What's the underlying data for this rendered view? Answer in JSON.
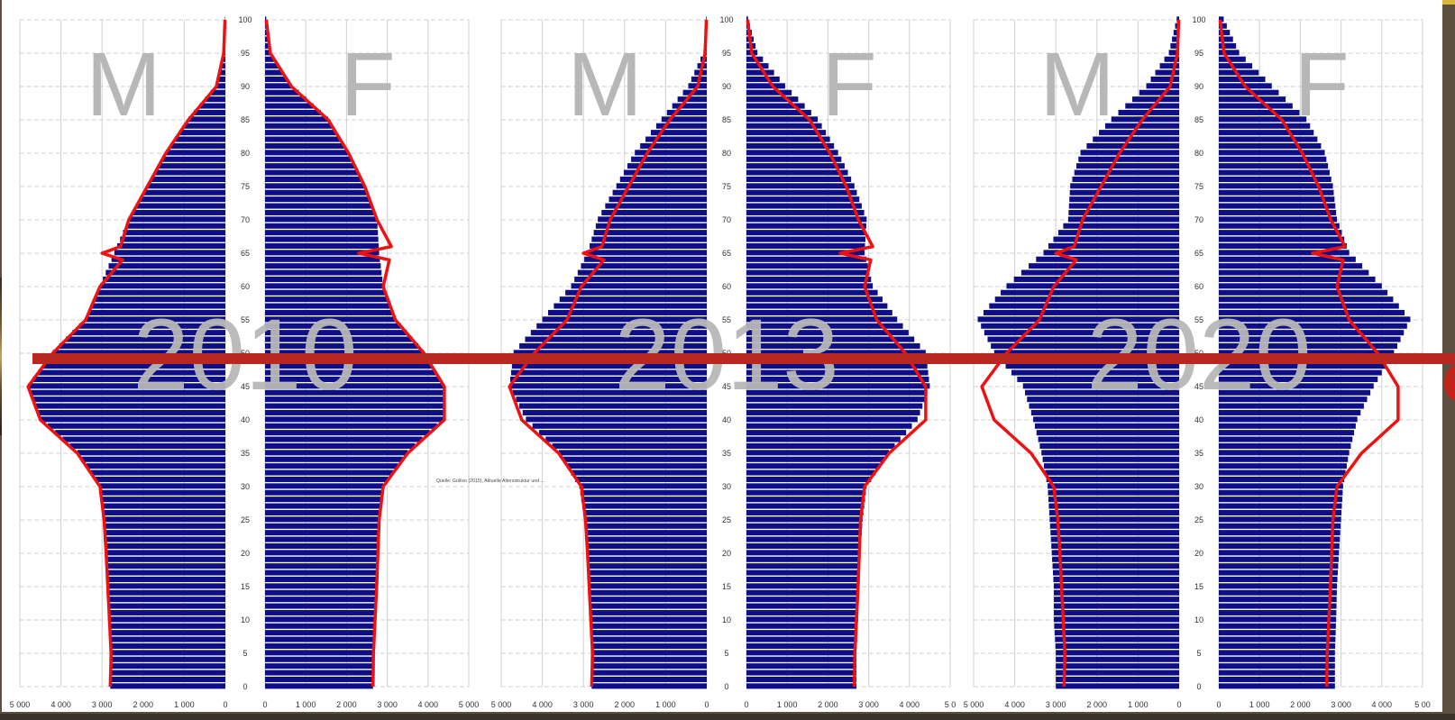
{
  "colors": {
    "bar": "#0e0e86",
    "line": "#ee1111",
    "overlay_text": "#b7b7b7",
    "horizontal_marker": "#b82820",
    "frame_gold": "#d8b938",
    "frame_background": "#5e5040"
  },
  "source_note": "Quelle: Gulliso (2015), Aktuelle Altersstruktur und …",
  "chart_data": [
    {
      "type": "bar",
      "orientation": "horizontal",
      "title": "2010",
      "left_label": "M",
      "right_label": "F",
      "age_ticks": [
        "0",
        "5",
        "10",
        "15",
        "20",
        "25",
        "30",
        "35",
        "40",
        "45",
        "50",
        "55",
        "60",
        "65",
        "70",
        "75",
        "80",
        "85",
        "90",
        "95",
        "100"
      ],
      "x_ticks_left": [
        "5 000",
        "4 000",
        "3 000",
        "2 000",
        "1 000",
        "0"
      ],
      "x_ticks_right": [
        "0",
        "1 000",
        "2 000",
        "3 000",
        "4 000",
        "5 000"
      ],
      "xlim": [
        0,
        5000
      ],
      "ylim": [
        0,
        100
      ],
      "grid": true,
      "series": [
        {
          "male": [
            [
              0,
              2800
            ],
            [
              5,
              2780
            ],
            [
              10,
              2820
            ],
            [
              15,
              2860
            ],
            [
              20,
              2900
            ],
            [
              25,
              2950
            ],
            [
              30,
              3050
            ],
            [
              35,
              3600
            ],
            [
              40,
              4500
            ],
            [
              45,
              4800
            ],
            [
              50,
              4200
            ],
            [
              55,
              3400
            ],
            [
              60,
              3050
            ],
            [
              65,
              2700
            ],
            [
              70,
              2350
            ],
            [
              75,
              1900
            ],
            [
              80,
              1450
            ],
            [
              85,
              900
            ],
            [
              90,
              220
            ],
            [
              95,
              40
            ],
            [
              100,
              10
            ]
          ],
          "female": [
            [
              0,
              2650
            ],
            [
              5,
              2660
            ],
            [
              10,
              2700
            ],
            [
              15,
              2740
            ],
            [
              20,
              2770
            ],
            [
              25,
              2800
            ],
            [
              30,
              2900
            ],
            [
              35,
              3500
            ],
            [
              40,
              4400
            ],
            [
              45,
              4400
            ],
            [
              50,
              3900
            ],
            [
              55,
              3200
            ],
            [
              60,
              2900
            ],
            [
              65,
              2800
            ],
            [
              70,
              2750
            ],
            [
              75,
              2450
            ],
            [
              80,
              2050
            ],
            [
              85,
              1550
            ],
            [
              90,
              650
            ],
            [
              95,
              130
            ],
            [
              100,
              30
            ]
          ]
        }
      ],
      "reference_line": {
        "male": [
          [
            0,
            2800
          ],
          [
            5,
            2780
          ],
          [
            10,
            2820
          ],
          [
            15,
            2860
          ],
          [
            20,
            2900
          ],
          [
            25,
            2950
          ],
          [
            30,
            3050
          ],
          [
            35,
            3600
          ],
          [
            40,
            4500
          ],
          [
            45,
            4800
          ],
          [
            50,
            4200
          ],
          [
            55,
            3400
          ],
          [
            60,
            3050
          ],
          [
            64,
            2500
          ],
          [
            65,
            3000
          ],
          [
            66,
            2550
          ],
          [
            70,
            2350
          ],
          [
            75,
            1900
          ],
          [
            80,
            1450
          ],
          [
            85,
            900
          ],
          [
            90,
            220
          ],
          [
            95,
            40
          ],
          [
            100,
            10
          ]
        ],
        "female": [
          [
            0,
            2650
          ],
          [
            5,
            2660
          ],
          [
            10,
            2700
          ],
          [
            15,
            2740
          ],
          [
            20,
            2770
          ],
          [
            25,
            2800
          ],
          [
            30,
            2900
          ],
          [
            35,
            3500
          ],
          [
            40,
            4400
          ],
          [
            45,
            4400
          ],
          [
            50,
            3900
          ],
          [
            55,
            3200
          ],
          [
            60,
            2900
          ],
          [
            64,
            3050
          ],
          [
            65,
            2300
          ],
          [
            66,
            3100
          ],
          [
            70,
            2750
          ],
          [
            75,
            2450
          ],
          [
            80,
            2050
          ],
          [
            85,
            1550
          ],
          [
            90,
            650
          ],
          [
            95,
            130
          ],
          [
            100,
            30
          ]
        ]
      }
    },
    {
      "type": "bar",
      "orientation": "horizontal",
      "title": "2013",
      "left_label": "M",
      "right_label": "F",
      "age_ticks": [
        "0",
        "5",
        "10",
        "15",
        "20",
        "25",
        "30",
        "35",
        "40",
        "45",
        "50",
        "55",
        "60",
        "65",
        "70",
        "75",
        "80",
        "85",
        "90",
        "95",
        "100"
      ],
      "x_ticks_left": [
        "5 000",
        "4 000",
        "3 000",
        "2 000",
        "1 000",
        "0"
      ],
      "x_ticks_right": [
        "0",
        "1 000",
        "2 000",
        "3 000",
        "4 000",
        "5 0"
      ],
      "xlim": [
        0,
        5000
      ],
      "ylim": [
        0,
        100
      ],
      "grid": true,
      "series": [
        {
          "male": [
            [
              0,
              2800
            ],
            [
              5,
              2800
            ],
            [
              10,
              2850
            ],
            [
              15,
              2880
            ],
            [
              20,
              2920
            ],
            [
              25,
              2980
            ],
            [
              30,
              3100
            ],
            [
              35,
              3600
            ],
            [
              40,
              4400
            ],
            [
              45,
              4800
            ],
            [
              50,
              4700
            ],
            [
              55,
              4000
            ],
            [
              60,
              3300
            ],
            [
              65,
              2900
            ],
            [
              70,
              2650
            ],
            [
              75,
              2200
            ],
            [
              80,
              1750
            ],
            [
              85,
              1100
            ],
            [
              90,
              450
            ],
            [
              95,
              80
            ],
            [
              100,
              15
            ]
          ],
          "female": [
            [
              0,
              2700
            ],
            [
              5,
              2700
            ],
            [
              10,
              2740
            ],
            [
              15,
              2770
            ],
            [
              20,
              2800
            ],
            [
              25,
              2850
            ],
            [
              30,
              2950
            ],
            [
              35,
              3500
            ],
            [
              40,
              4200
            ],
            [
              45,
              4500
            ],
            [
              50,
              4400
            ],
            [
              55,
              3700
            ],
            [
              60,
              3100
            ],
            [
              65,
              2900
            ],
            [
              70,
              2950
            ],
            [
              75,
              2650
            ],
            [
              80,
              2250
            ],
            [
              85,
              1750
            ],
            [
              90,
              950
            ],
            [
              95,
              270
            ],
            [
              100,
              40
            ]
          ]
        }
      ],
      "reference_line": {
        "male": [
          [
            0,
            2800
          ],
          [
            5,
            2780
          ],
          [
            10,
            2820
          ],
          [
            15,
            2860
          ],
          [
            20,
            2900
          ],
          [
            25,
            2950
          ],
          [
            30,
            3050
          ],
          [
            35,
            3600
          ],
          [
            40,
            4500
          ],
          [
            45,
            4800
          ],
          [
            50,
            4200
          ],
          [
            55,
            3400
          ],
          [
            60,
            3050
          ],
          [
            64,
            2500
          ],
          [
            65,
            3000
          ],
          [
            66,
            2550
          ],
          [
            70,
            2350
          ],
          [
            75,
            1900
          ],
          [
            80,
            1450
          ],
          [
            85,
            900
          ],
          [
            90,
            220
          ],
          [
            95,
            40
          ],
          [
            100,
            10
          ]
        ],
        "female": [
          [
            0,
            2650
          ],
          [
            5,
            2660
          ],
          [
            10,
            2700
          ],
          [
            15,
            2740
          ],
          [
            20,
            2770
          ],
          [
            25,
            2800
          ],
          [
            30,
            2900
          ],
          [
            35,
            3500
          ],
          [
            40,
            4400
          ],
          [
            45,
            4400
          ],
          [
            50,
            3900
          ],
          [
            55,
            3200
          ],
          [
            60,
            2900
          ],
          [
            64,
            3050
          ],
          [
            65,
            2300
          ],
          [
            66,
            3100
          ],
          [
            70,
            2750
          ],
          [
            75,
            2450
          ],
          [
            80,
            2050
          ],
          [
            85,
            1550
          ],
          [
            90,
            650
          ],
          [
            95,
            130
          ],
          [
            100,
            30
          ]
        ]
      }
    },
    {
      "type": "bar",
      "orientation": "horizontal",
      "title": "2020",
      "left_label": "M",
      "right_label": "F",
      "age_ticks": [
        "0",
        "5",
        "10",
        "15",
        "20",
        "25",
        "30",
        "35",
        "40",
        "45",
        "50",
        "55",
        "60",
        "65",
        "70",
        "75",
        "80",
        "85",
        "90",
        "95",
        "100"
      ],
      "x_ticks_left": [
        "5 000",
        "4 000",
        "3 000",
        "2 000",
        "1 000",
        "0"
      ],
      "x_ticks_right": [
        "0",
        "1 000",
        "2 000",
        "3 000",
        "4 000",
        "5 00"
      ],
      "xlim": [
        0,
        5000
      ],
      "ylim": [
        0,
        100
      ],
      "grid": true,
      "series": [
        {
          "male": [
            [
              0,
              3000
            ],
            [
              5,
              3000
            ],
            [
              10,
              3050
            ],
            [
              15,
              3050
            ],
            [
              20,
              3100
            ],
            [
              25,
              3150
            ],
            [
              30,
              3200
            ],
            [
              35,
              3350
            ],
            [
              40,
              3550
            ],
            [
              45,
              3800
            ],
            [
              50,
              4500
            ],
            [
              55,
              4900
            ],
            [
              60,
              4200
            ],
            [
              65,
              3300
            ],
            [
              70,
              2700
            ],
            [
              75,
              2650
            ],
            [
              80,
              2400
            ],
            [
              85,
              1650
            ],
            [
              90,
              800
            ],
            [
              95,
              250
            ],
            [
              100,
              60
            ]
          ],
          "female": [
            [
              0,
              2850
            ],
            [
              5,
              2850
            ],
            [
              10,
              2880
            ],
            [
              15,
              2900
            ],
            [
              20,
              2950
            ],
            [
              25,
              3000
            ],
            [
              30,
              3050
            ],
            [
              35,
              3200
            ],
            [
              40,
              3400
            ],
            [
              45,
              3800
            ],
            [
              50,
              4300
            ],
            [
              55,
              4700
            ],
            [
              60,
              4000
            ],
            [
              65,
              3200
            ],
            [
              70,
              2900
            ],
            [
              75,
              2800
            ],
            [
              80,
              2600
            ],
            [
              85,
              2150
            ],
            [
              90,
              1300
            ],
            [
              95,
              500
            ],
            [
              100,
              120
            ]
          ]
        }
      ],
      "reference_line": {
        "male": [
          [
            0,
            2800
          ],
          [
            5,
            2780
          ],
          [
            10,
            2820
          ],
          [
            15,
            2860
          ],
          [
            20,
            2900
          ],
          [
            25,
            2950
          ],
          [
            30,
            3050
          ],
          [
            35,
            3600
          ],
          [
            40,
            4500
          ],
          [
            45,
            4800
          ],
          [
            50,
            4200
          ],
          [
            55,
            3400
          ],
          [
            60,
            3050
          ],
          [
            64,
            2500
          ],
          [
            65,
            3000
          ],
          [
            66,
            2550
          ],
          [
            70,
            2350
          ],
          [
            75,
            1900
          ],
          [
            80,
            1450
          ],
          [
            85,
            900
          ],
          [
            90,
            220
          ],
          [
            95,
            40
          ],
          [
            100,
            10
          ]
        ],
        "female": [
          [
            0,
            2650
          ],
          [
            5,
            2660
          ],
          [
            10,
            2700
          ],
          [
            15,
            2740
          ],
          [
            20,
            2770
          ],
          [
            25,
            2800
          ],
          [
            30,
            2900
          ],
          [
            35,
            3500
          ],
          [
            40,
            4400
          ],
          [
            45,
            4400
          ],
          [
            50,
            3900
          ],
          [
            55,
            3200
          ],
          [
            60,
            2900
          ],
          [
            64,
            3050
          ],
          [
            65,
            2300
          ],
          [
            66,
            3100
          ],
          [
            70,
            2750
          ],
          [
            75,
            2450
          ],
          [
            80,
            2050
          ],
          [
            85,
            1550
          ],
          [
            90,
            650
          ],
          [
            95,
            130
          ],
          [
            100,
            30
          ]
        ]
      }
    }
  ]
}
